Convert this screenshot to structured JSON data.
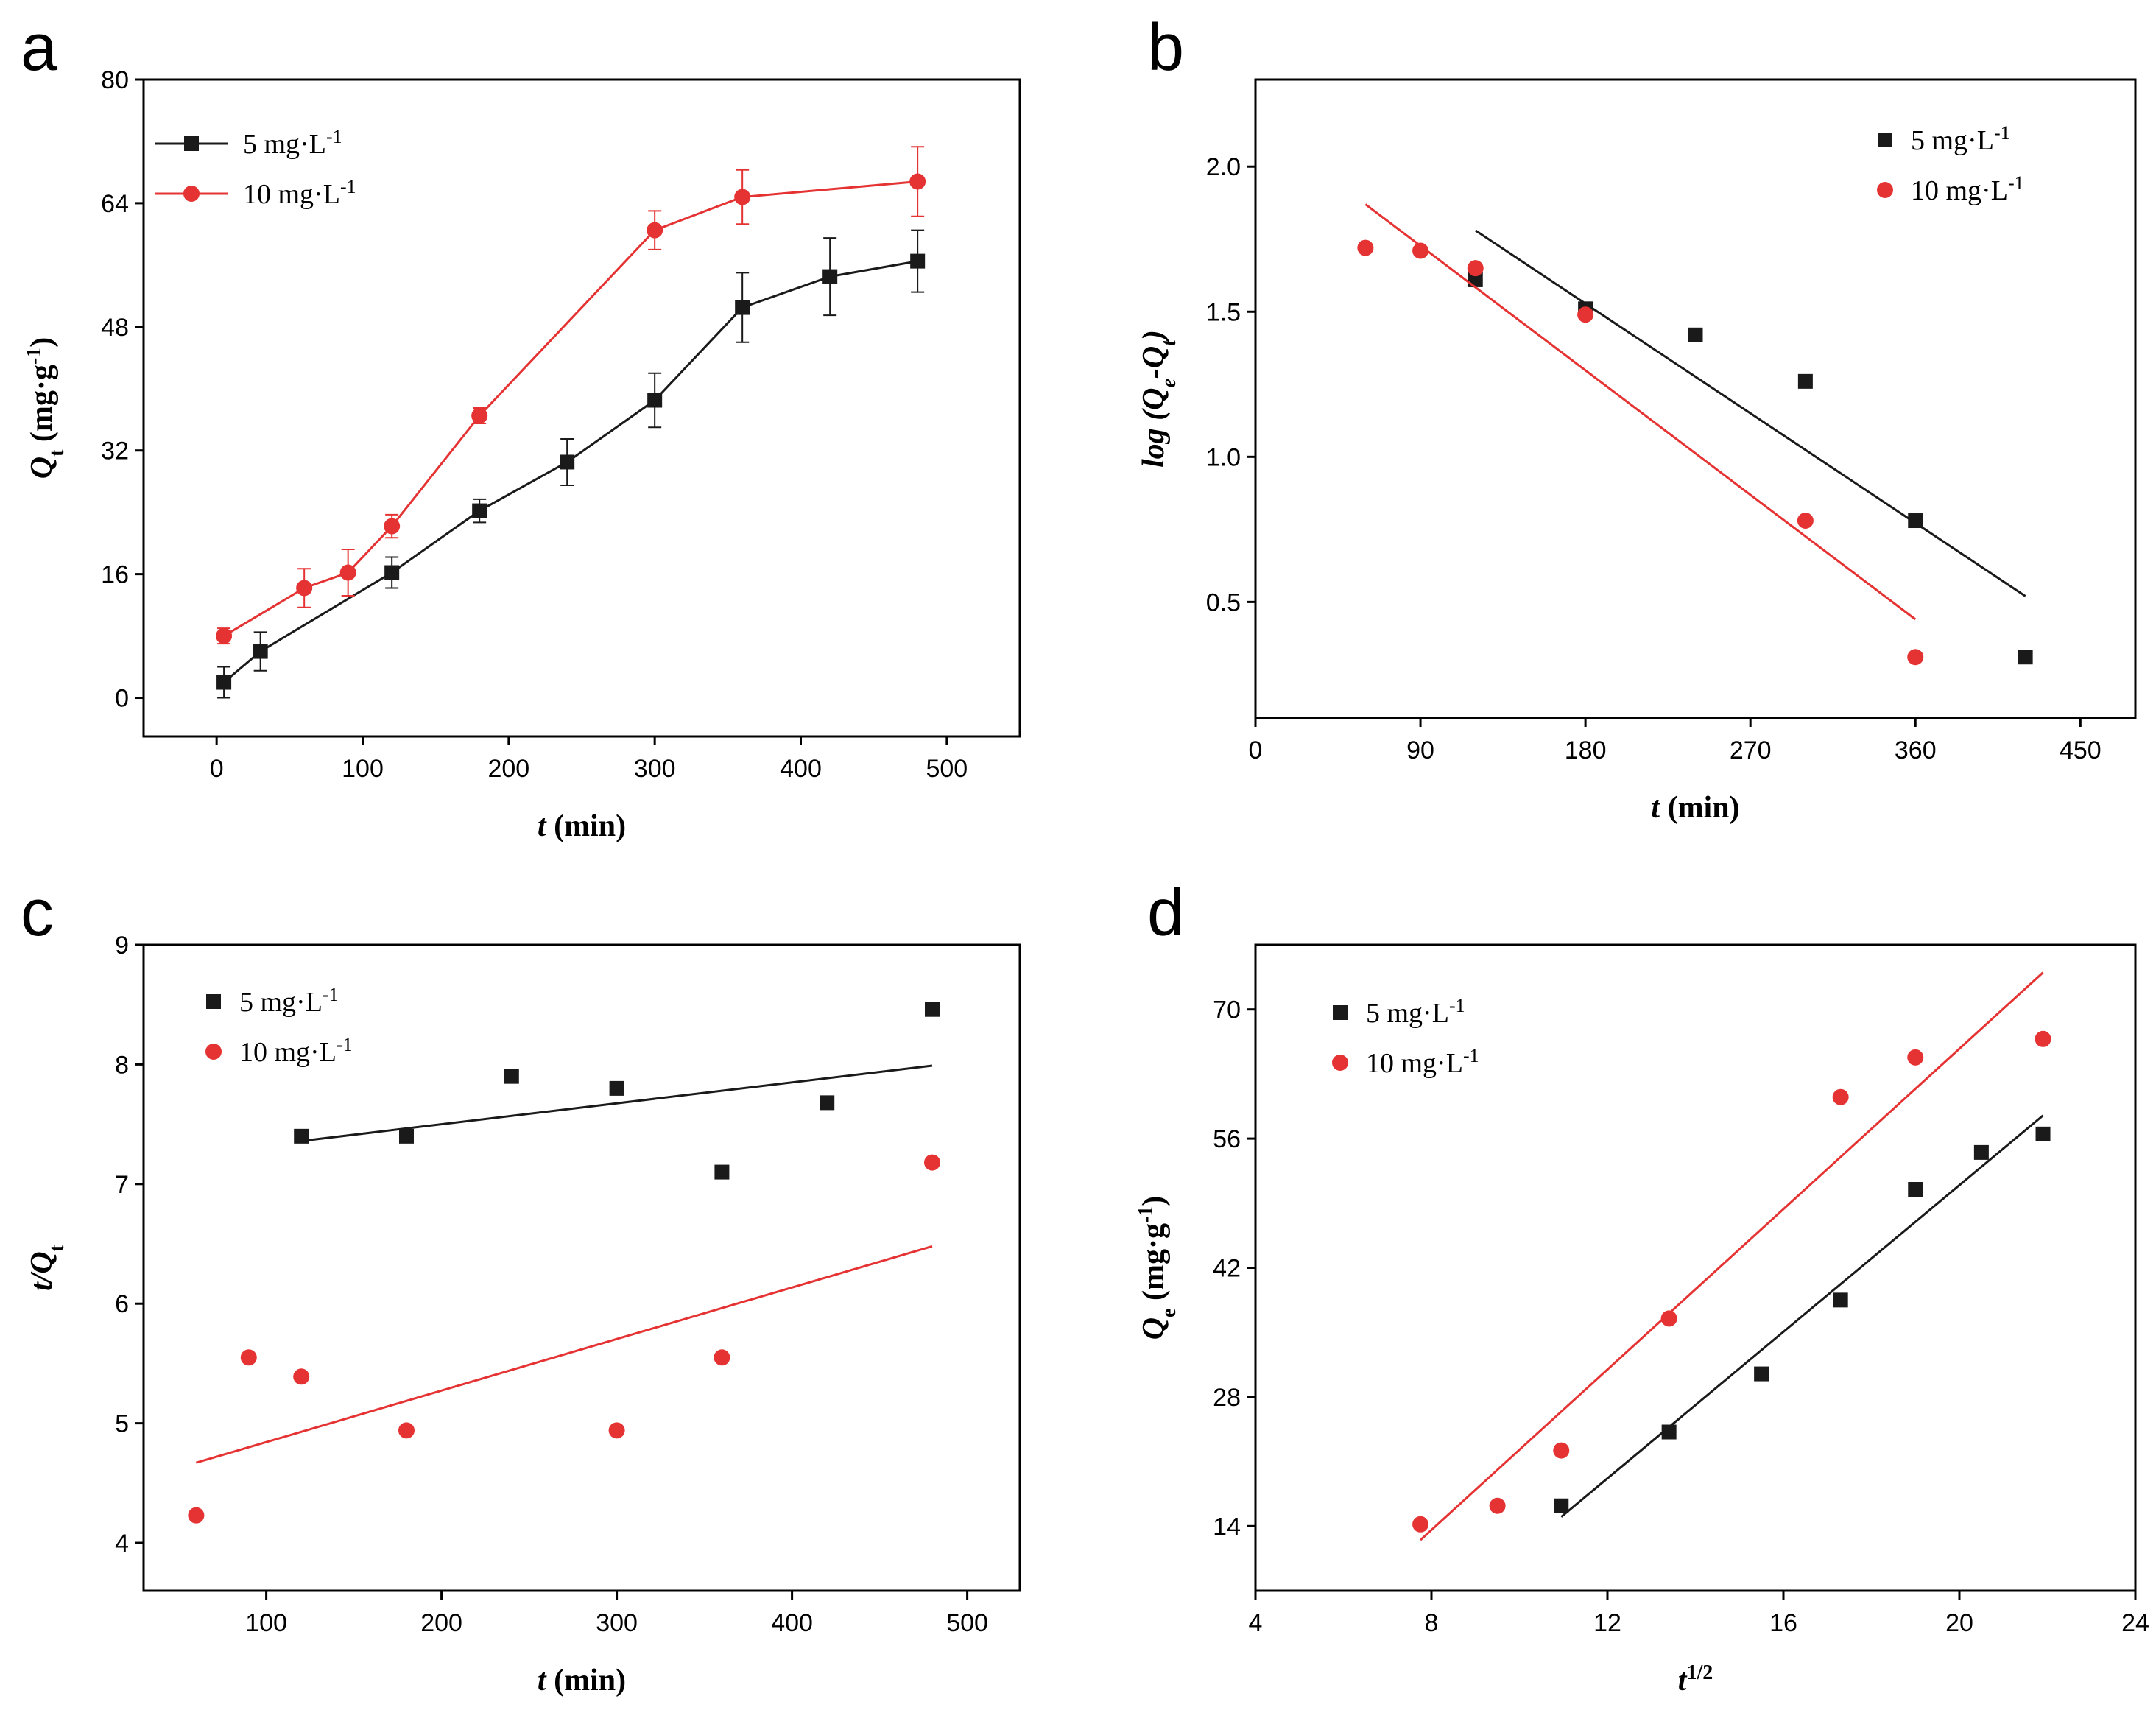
{
  "colors": {
    "black_series": "#1a1a1a",
    "red_series": "#e53333"
  },
  "chart_data": [
    {
      "panel": "a",
      "type": "line",
      "x_title": {
        "italic": "t",
        "rest": " (min)"
      },
      "y_title": {
        "italic": "Q",
        "sub": "t",
        "rest": " (mg·g",
        "sup": "-1",
        "end": ")"
      },
      "xlim": [
        -50,
        550
      ],
      "ylim": [
        -5,
        80
      ],
      "xticks": [
        0,
        100,
        200,
        300,
        400,
        500
      ],
      "yticks": [
        0,
        16,
        32,
        48,
        64,
        80
      ],
      "legend_position": "top-left",
      "series": [
        {
          "name": "5  mg·L",
          "name_sup": "-1",
          "color": "#1a1a1a",
          "marker": "square",
          "connect": true,
          "x": [
            5,
            30,
            120,
            180,
            240,
            300,
            360,
            420,
            480
          ],
          "y": [
            2,
            6,
            16.2,
            24.2,
            30.5,
            38.5,
            50.5,
            54.5,
            56.5
          ],
          "err": [
            2,
            2.5,
            2,
            1.5,
            3,
            3.5,
            4.5,
            5,
            4
          ]
        },
        {
          "name": "10 mg·L",
          "name_sup": "-1",
          "color": "#e53333",
          "marker": "circle",
          "connect": true,
          "x": [
            5,
            60,
            90,
            120,
            180,
            300,
            360,
            480
          ],
          "y": [
            8,
            14.2,
            16.2,
            22.2,
            36.5,
            60.5,
            64.8,
            66.8
          ],
          "err": [
            1,
            2.5,
            3,
            1.5,
            1,
            2.5,
            3.5,
            4.5
          ]
        }
      ]
    },
    {
      "panel": "b",
      "type": "scatter",
      "x_title": {
        "italic": "t",
        "rest": " (min)"
      },
      "y_title": {
        "italic_full": "log (Q",
        "sub": "e",
        "mid": "-Q",
        "sub2": "t",
        "end": ")"
      },
      "xlim": [
        0,
        480
      ],
      "ylim": [
        0.1,
        2.3
      ],
      "xticks": [
        0,
        90,
        180,
        270,
        360,
        450
      ],
      "yticks": [
        0.5,
        1.0,
        1.5,
        2.0
      ],
      "ytick_labels": [
        "0.5",
        "1.0",
        "1.5",
        "2.0"
      ],
      "legend_position": "top-right",
      "series": [
        {
          "name": "5   mg·L",
          "name_sup": "-1",
          "color": "#1a1a1a",
          "marker": "square",
          "x": [
            120,
            180,
            240,
            300,
            360,
            420
          ],
          "y": [
            1.61,
            1.51,
            1.42,
            1.26,
            0.78,
            0.31
          ],
          "fit": {
            "x": [
              120,
              420
            ],
            "y": [
              1.78,
              0.52
            ]
          }
        },
        {
          "name": "10  mg·L",
          "name_sup": "-1",
          "color": "#e53333",
          "marker": "circle",
          "x": [
            60,
            90,
            120,
            180,
            300,
            360
          ],
          "y": [
            1.72,
            1.71,
            1.65,
            1.49,
            0.78,
            0.31
          ],
          "fit": {
            "x": [
              60,
              360
            ],
            "y": [
              1.87,
              0.44
            ]
          }
        }
      ]
    },
    {
      "panel": "c",
      "type": "scatter",
      "x_title": {
        "italic": "t",
        "rest": " (min)"
      },
      "y_title": {
        "italic": "t/Q",
        "sub": "t"
      },
      "xlim": [
        30,
        530
      ],
      "ylim": [
        3.6,
        9
      ],
      "xticks": [
        100,
        200,
        300,
        400,
        500
      ],
      "yticks": [
        4,
        5,
        6,
        7,
        8,
        9
      ],
      "legend_position": "top-left",
      "series": [
        {
          "name": "5   mg·L",
          "name_sup": "-1",
          "color": "#1a1a1a",
          "marker": "square",
          "x": [
            120,
            180,
            240,
            300,
            360,
            420,
            480
          ],
          "y": [
            7.4,
            7.4,
            7.9,
            7.8,
            7.1,
            7.68,
            8.46
          ],
          "fit": {
            "x": [
              120,
              480
            ],
            "y": [
              7.36,
              7.99
            ]
          }
        },
        {
          "name": "10  mg·L",
          "name_sup": "-1",
          "color": "#e53333",
          "marker": "circle",
          "x": [
            60,
            90,
            120,
            180,
            300,
            360,
            480
          ],
          "y": [
            4.23,
            5.55,
            5.39,
            4.94,
            4.94,
            5.55,
            7.18
          ],
          "fit": {
            "x": [
              60,
              480
            ],
            "y": [
              4.67,
              6.48
            ]
          }
        }
      ]
    },
    {
      "panel": "d",
      "type": "scatter",
      "x_title": {
        "italic": "t",
        "sup": "1/2"
      },
      "y_title": {
        "italic": "Q",
        "sub": "e",
        "rest": " (mg·g",
        "sup": "-1",
        "end": ")"
      },
      "xlim": [
        4,
        24
      ],
      "ylim": [
        7,
        77
      ],
      "xticks": [
        4,
        8,
        12,
        16,
        20,
        24
      ],
      "yticks": [
        14,
        28,
        42,
        56,
        70
      ],
      "legend_position": "top-left",
      "series": [
        {
          "name": "5  mg·L",
          "name_sup": "-1",
          "color": "#1a1a1a",
          "marker": "square",
          "x": [
            10.95,
            13.4,
            15.5,
            17.3,
            19,
            20.5,
            21.9
          ],
          "y": [
            16.2,
            24.2,
            30.5,
            38.5,
            50.5,
            54.5,
            56.5
          ],
          "fit": {
            "x": [
              10.95,
              21.9
            ],
            "y": [
              15,
              58.5
            ]
          }
        },
        {
          "name": "10 mg·L",
          "name_sup": "-1",
          "color": "#e53333",
          "marker": "circle",
          "x": [
            7.75,
            9.5,
            10.95,
            13.4,
            17.3,
            19,
            21.9
          ],
          "y": [
            14.2,
            16.2,
            22.2,
            36.5,
            60.5,
            64.8,
            66.8
          ],
          "fit": {
            "x": [
              7.75,
              21.9
            ],
            "y": [
              12.5,
              74
            ]
          }
        }
      ]
    }
  ]
}
